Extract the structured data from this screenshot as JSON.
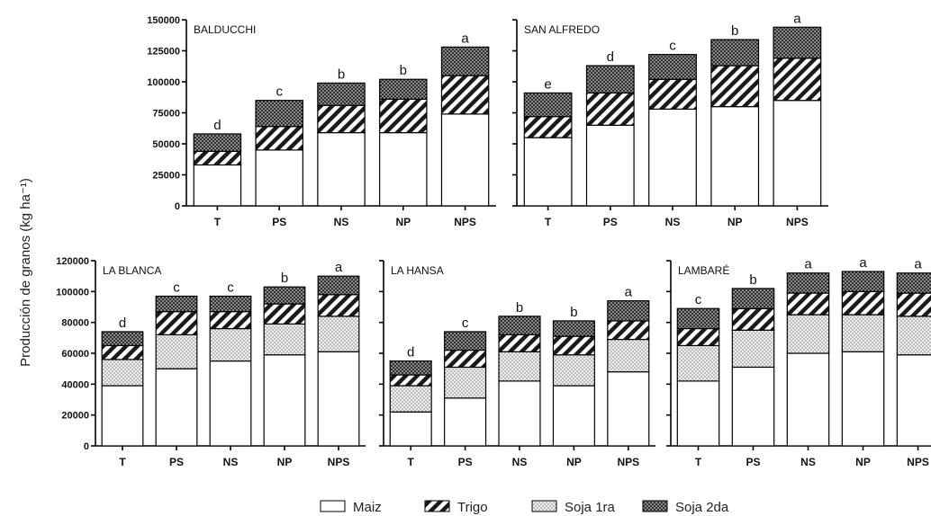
{
  "chart_data": {
    "type": "bar",
    "stacked": true,
    "ylabel": "Producción de granos (kg ha⁻¹)",
    "categories": [
      "T",
      "PS",
      "NS",
      "NP",
      "NPS"
    ],
    "legend": {
      "placement": "bottom",
      "entries": [
        {
          "name": "Maiz",
          "pattern": "white"
        },
        {
          "name": "Trigo",
          "pattern": "diagonal-stripes"
        },
        {
          "name": "Soja 1ra",
          "pattern": "light-dots"
        },
        {
          "name": "Soja 2da",
          "pattern": "dark-dots"
        }
      ]
    },
    "colors": {
      "maiz": "#ffffff",
      "trigo": "#1a1a1a",
      "soja1ra": "#cfcfcf",
      "soja2da": "#555555"
    },
    "panels": [
      {
        "title": "BALDUCCHI",
        "ylim": [
          0,
          150000
        ],
        "yticks": [
          "0",
          "25000",
          "50000",
          "75000",
          "100000",
          "125000",
          "150000"
        ],
        "series": [
          {
            "name": "Maiz",
            "values": [
              33000,
              45000,
              59000,
              59000,
              74000
            ]
          },
          {
            "name": "Trigo",
            "values": [
              11000,
              19000,
              22000,
              27000,
              31000
            ]
          },
          {
            "name": "Soja 2da",
            "values": [
              14000,
              21000,
              18000,
              16000,
              23000
            ]
          }
        ],
        "letters": [
          "d",
          "c",
          "b",
          "b",
          "a"
        ]
      },
      {
        "title": "SAN ALFREDO",
        "ylim": [
          0,
          150000
        ],
        "yticks": [],
        "series": [
          {
            "name": "Maiz",
            "values": [
              55000,
              65000,
              78000,
              80000,
              85000
            ]
          },
          {
            "name": "Trigo",
            "values": [
              17000,
              26000,
              24000,
              33000,
              34000
            ]
          },
          {
            "name": "Soja 2da",
            "values": [
              19000,
              22000,
              20000,
              21000,
              25000
            ]
          }
        ],
        "letters": [
          "e",
          "d",
          "c",
          "b",
          "a"
        ]
      },
      {
        "title": "LA BLANCA",
        "ylim": [
          0,
          120000
        ],
        "yticks": [
          "0",
          "20000",
          "40000",
          "60000",
          "80000",
          "100000",
          "120000"
        ],
        "series": [
          {
            "name": "Maiz",
            "values": [
              39000,
              50000,
              55000,
              59000,
              61000
            ]
          },
          {
            "name": "Soja 1ra",
            "values": [
              17000,
              22000,
              21000,
              20000,
              23000
            ]
          },
          {
            "name": "Trigo",
            "values": [
              9000,
              15000,
              11000,
              13000,
              14000
            ]
          },
          {
            "name": "Soja 2da",
            "values": [
              9000,
              10000,
              10000,
              11000,
              12000
            ]
          }
        ],
        "letters": [
          "d",
          "c",
          "c",
          "b",
          "a"
        ]
      },
      {
        "title": "LA HANSA",
        "ylim": [
          0,
          120000
        ],
        "yticks": [],
        "series": [
          {
            "name": "Maiz",
            "values": [
              22000,
              31000,
              42000,
              39000,
              48000
            ]
          },
          {
            "name": "Soja 1ra",
            "values": [
              17000,
              20000,
              19000,
              20000,
              21000
            ]
          },
          {
            "name": "Trigo",
            "values": [
              7000,
              11000,
              11000,
              12000,
              12000
            ]
          },
          {
            "name": "Soja 2da",
            "values": [
              9000,
              12000,
              12000,
              10000,
              13000
            ]
          }
        ],
        "letters": [
          "d",
          "c",
          "b",
          "b",
          "a"
        ]
      },
      {
        "title": "LAMBARÉ",
        "ylim": [
          0,
          120000
        ],
        "yticks": [],
        "series": [
          {
            "name": "Maiz",
            "values": [
              42000,
              51000,
              60000,
              61000,
              59000
            ]
          },
          {
            "name": "Soja 1ra",
            "values": [
              23000,
              24000,
              25000,
              24000,
              25000
            ]
          },
          {
            "name": "Trigo",
            "values": [
              11000,
              14000,
              14000,
              15000,
              15000
            ]
          },
          {
            "name": "Soja 2da",
            "values": [
              13000,
              13000,
              13000,
              13000,
              13000
            ]
          }
        ],
        "letters": [
          "c",
          "b",
          "a",
          "a",
          "a"
        ]
      }
    ]
  }
}
